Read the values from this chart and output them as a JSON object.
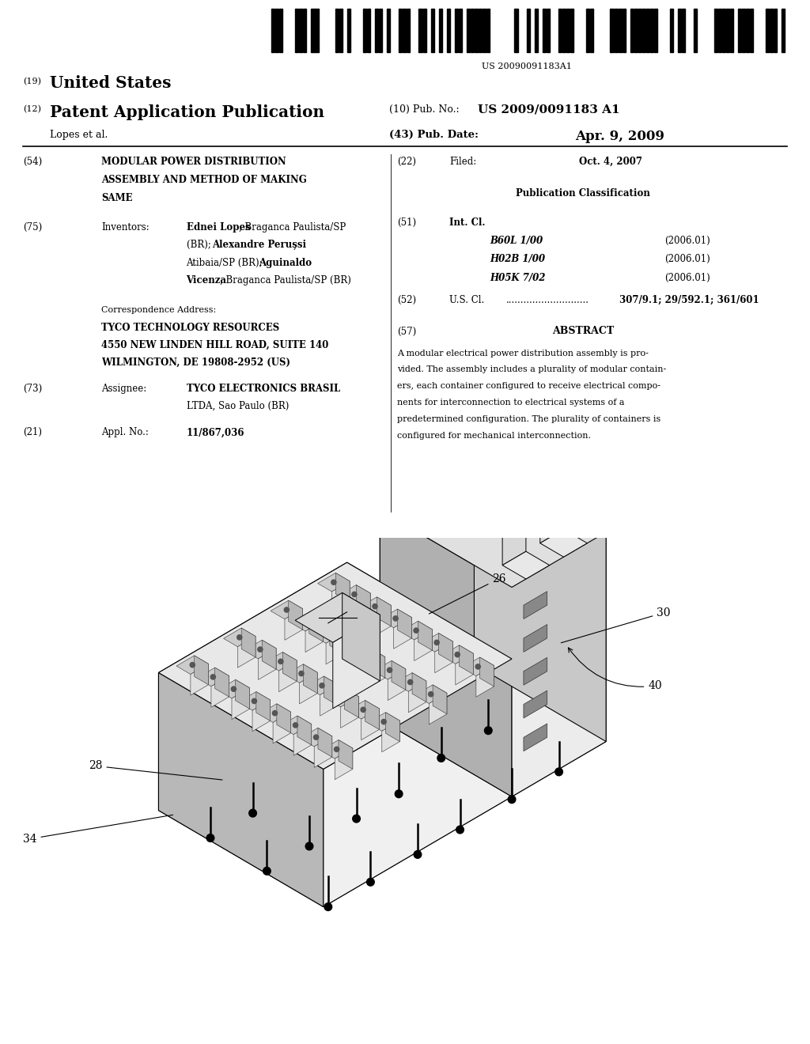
{
  "background_color": "#ffffff",
  "barcode_text": "US 20090091183A1",
  "country": "United States",
  "pub_type": "Patent Application Publication",
  "pub_number_label": "(10) Pub. No.:",
  "pub_number": "US 2009/0091183 A1",
  "pub_date_label": "(43) Pub. Date:",
  "pub_date": "Apr. 9, 2009",
  "inventor_label": "Lopes et al.",
  "num_19": "(19)",
  "num_12": "(12)",
  "title_num": "(54)",
  "title_lines": [
    "MODULAR POWER DISTRIBUTION",
    "ASSEMBLY AND METHOD OF MAKING",
    "SAME"
  ],
  "filed_num": "(22)",
  "filed_label": "Filed:",
  "filed_date": "Oct. 4, 2007",
  "inventors_num": "(75)",
  "inventors_label": "Inventors:",
  "pub_class_header": "Publication Classification",
  "intcl_num": "(51)",
  "intcl_label": "Int. Cl.",
  "intcl_entries": [
    [
      "B60L 1/00",
      "(2006.01)"
    ],
    [
      "H02B 1/00",
      "(2006.01)"
    ],
    [
      "H05K 7/02",
      "(2006.01)"
    ]
  ],
  "uscl_num": "(52)",
  "uscl_label": "U.S. Cl.",
  "uscl_dots": "............................",
  "uscl_value": "307/9.1; 29/592.1; 361/601",
  "corr_addr_header": "Correspondence Address:",
  "corr_addr_lines": [
    "TYCO TECHNOLOGY RESOURCES",
    "4550 NEW LINDEN HILL ROAD, SUITE 140",
    "WILMINGTON, DE 19808-2952 (US)"
  ],
  "assignee_num": "(73)",
  "assignee_label": "Assignee:",
  "assignee_line1": "TYCO ELECTRONICS BRASIL",
  "assignee_line2": "LTDA, Sao Paulo (BR)",
  "appl_num": "(21)",
  "appl_label": "Appl. No.:",
  "appl_value": "11/867,036",
  "abstract_num": "(57)",
  "abstract_label": "ABSTRACT",
  "abstract_lines": [
    "A modular electrical power distribution assembly is pro-",
    "vided. The assembly includes a plurality of modular contain-",
    "ers, each container configured to receive electrical compo-",
    "nents for interconnection to electrical systems of a",
    "predetermined configuration. The plurality of containers is",
    "configured for mechanical interconnection."
  ]
}
